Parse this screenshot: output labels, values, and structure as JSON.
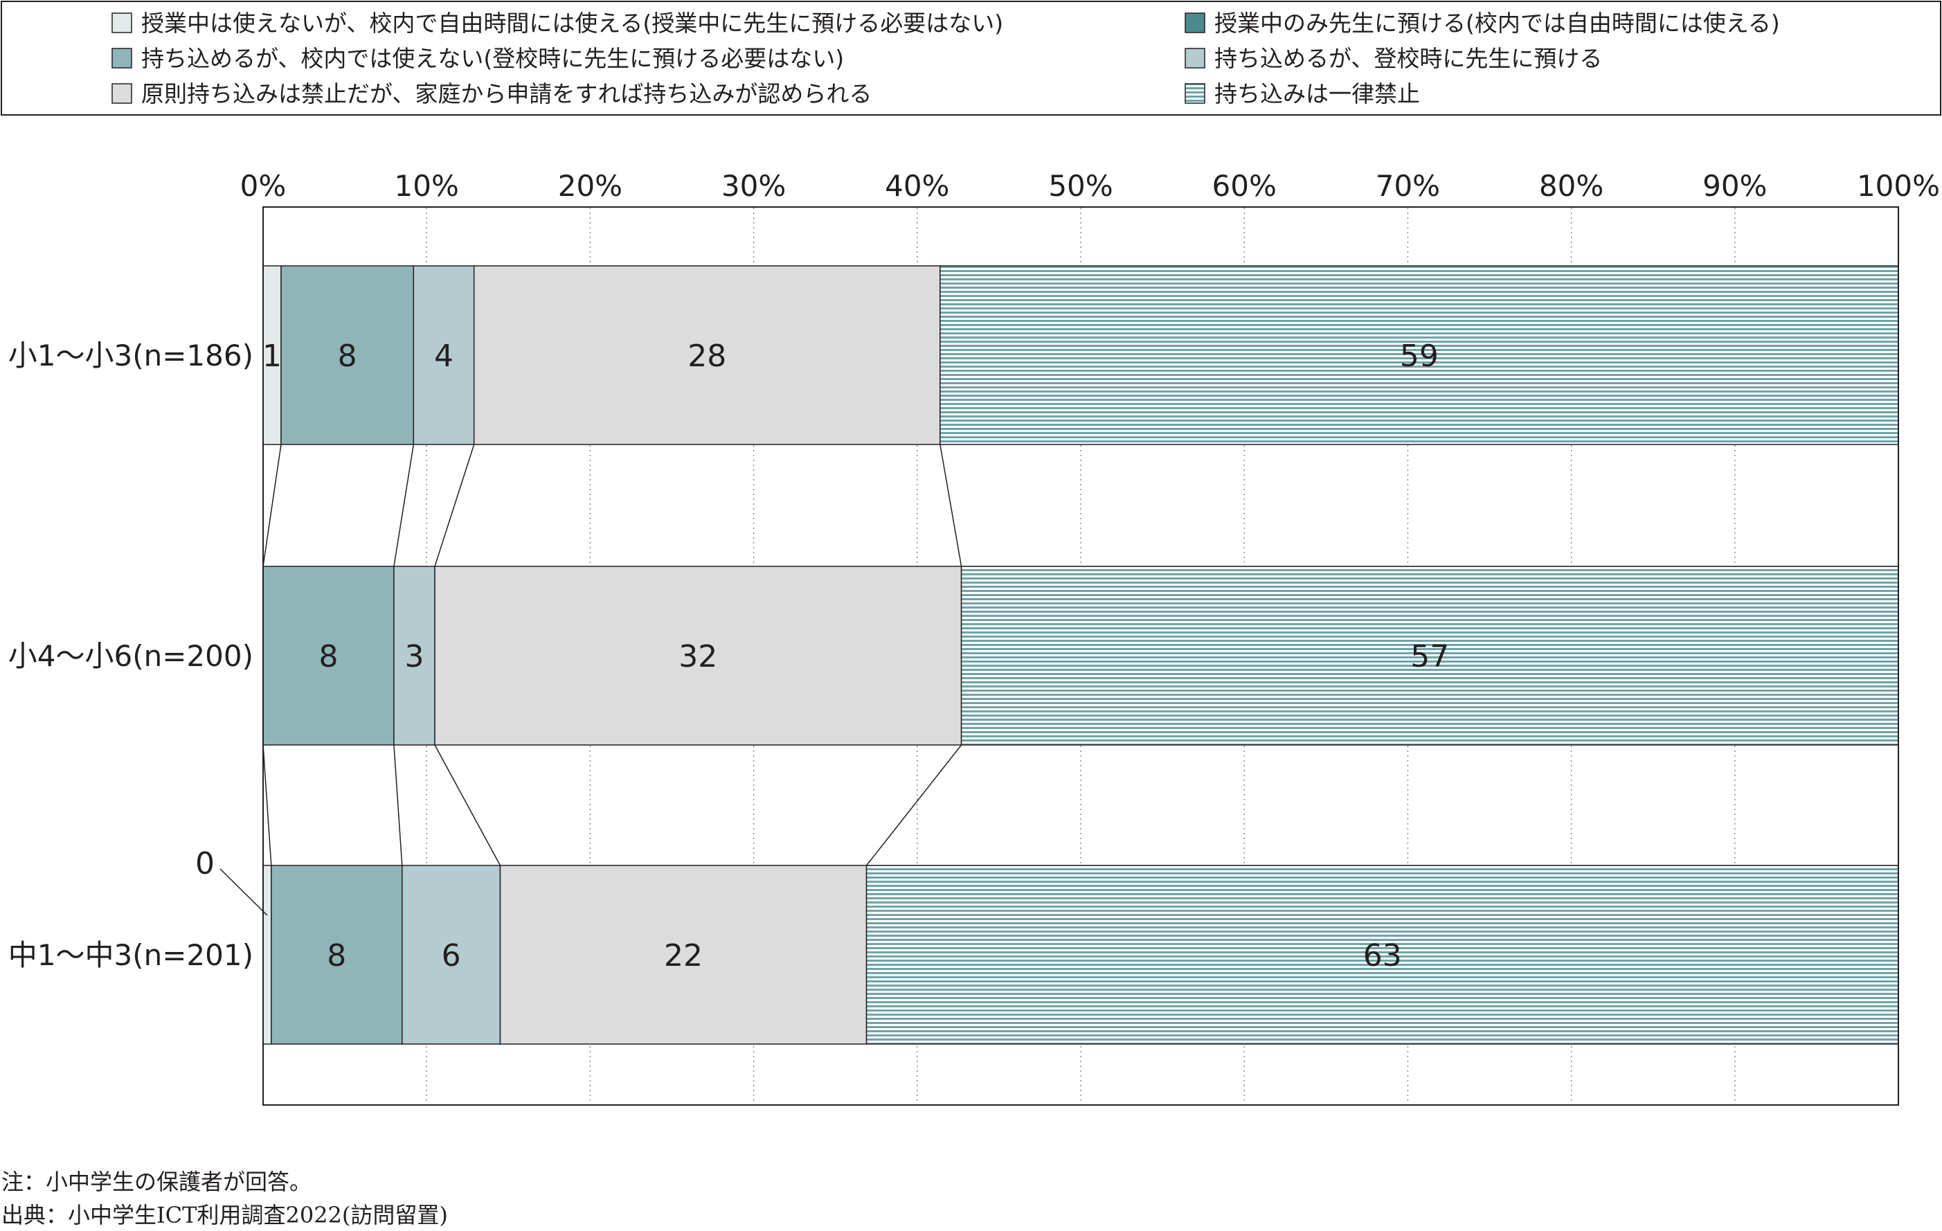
{
  "chart_data": {
    "type": "bar",
    "stacked": true,
    "orientation": "horizontal",
    "title": "",
    "xlabel": "",
    "ylabel": "",
    "xlim": [
      0,
      100
    ],
    "x_ticks": [
      "0%",
      "10%",
      "20%",
      "30%",
      "40%",
      "50%",
      "60%",
      "70%",
      "80%",
      "90%",
      "100%"
    ],
    "grid": "vertical dotted",
    "legend_position": "top",
    "categories": [
      "小1～小3(n=186)",
      "小4～小6(n=200)",
      "中1～中3(n=201)"
    ],
    "series": [
      {
        "name": "授業中は使えないが、校内で自由時間には使える(授業中に先生に預ける必要はない)",
        "color": "#e2ebea",
        "pattern": "solid",
        "values": [
          1.1,
          0,
          0.5
        ],
        "labels": [
          "1",
          "",
          "0"
        ]
      },
      {
        "name": "授業中のみ先生に預ける(校内では自由時間には使える)",
        "color": "#4b8a8e",
        "pattern": "solid",
        "values": [
          0,
          0,
          0
        ],
        "labels": [
          "",
          "",
          ""
        ]
      },
      {
        "name": "持ち込めるが、校内では使えない(登校時に先生に預ける必要はない)",
        "color": "#8fb5b9",
        "pattern": "solid",
        "values": [
          8.1,
          8.0,
          8.0
        ],
        "labels": [
          "8",
          "8",
          "8"
        ]
      },
      {
        "name": "持ち込めるが、登校時に先生に預ける",
        "color": "#b4cbd0",
        "pattern": "solid",
        "values": [
          3.7,
          2.5,
          6.0
        ],
        "labels": [
          "4",
          "3",
          "6"
        ]
      },
      {
        "name": "原則持ち込みは禁止だが、家庭から申請をすれば持ち込みが認められる",
        "color": "#dcdcdc",
        "pattern": "solid",
        "values": [
          28.5,
          32.2,
          22.4
        ],
        "labels": [
          "28",
          "32",
          "22"
        ]
      },
      {
        "name": "持ち込みは一律禁止",
        "color": "#8fb5b9",
        "pattern": "horizontal-stripes",
        "values": [
          58.6,
          57.3,
          63.1
        ],
        "labels": [
          "59",
          "57",
          "63"
        ]
      }
    ]
  },
  "notes": {
    "note": "注：小中学生の保護者が回答。",
    "source": "出典：小中学生ICT利用調査2022(訪問留置)"
  }
}
